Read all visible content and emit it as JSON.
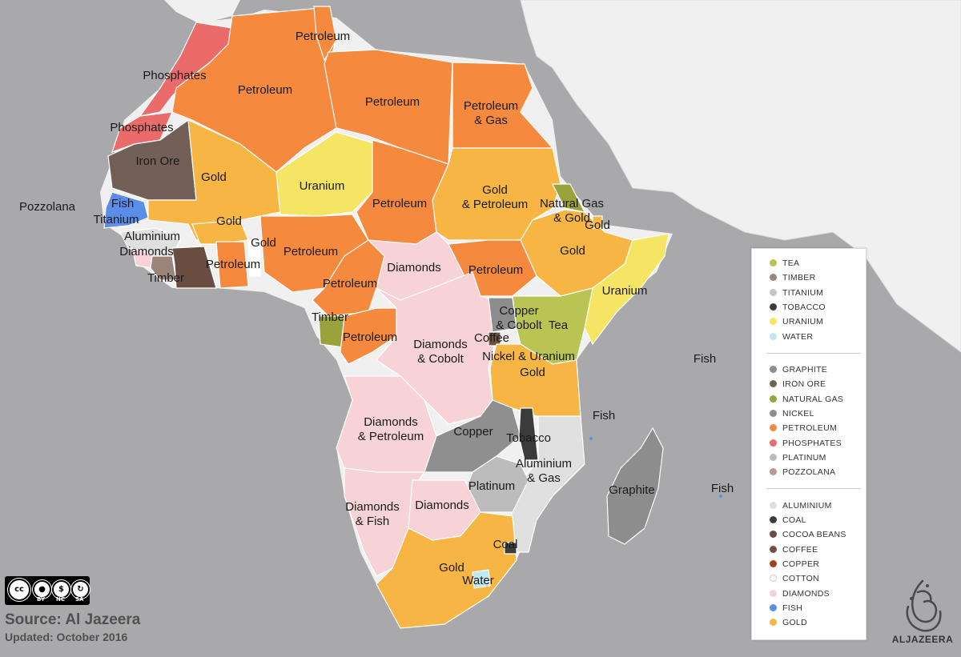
{
  "colors": {
    "sea": "#a9a9ab",
    "land_other": "#f0f0f0",
    "border": "#ffffff",
    "tea": "#b9c453",
    "timber": "#9b8479",
    "titanium": "#c6c6c6",
    "tobacco": "#3b3b3b",
    "uranium": "#f5e563",
    "water": "#bfe8f0",
    "graphite": "#8d8d8d",
    "iron_ore": "#726058",
    "natural_gas": "#9aa23c",
    "nickel": "#8f8f8f",
    "petroleum": "#f58a3e",
    "phosphates": "#eb6a6a",
    "platinum": "#bcbcbc",
    "pozzolana": "#b69b94",
    "aluminium": "#e0e0e0",
    "coal": "#3c3c3c",
    "cocoa_beans": "#6a4d40",
    "coffee": "#6e5140",
    "copper": "#a0401a",
    "cotton": "#ffffff",
    "diamonds": "#f7d2d6",
    "fish": "#5a8ee8",
    "gold": "#f7b544"
  },
  "map_labels": [
    {
      "name": "Petroleum",
      "text": "Petroleum"
    },
    {
      "name": "Phosphates",
      "text": "Phosphates"
    },
    {
      "name": "Petroleum",
      "text": "Petroleum"
    },
    {
      "name": "Petroleum",
      "text": "Petroleum"
    },
    {
      "name": "Petroleum & Gas",
      "text": "Petroleum\n& Gas"
    },
    {
      "name": "Phosphates",
      "text": "Phosphates"
    },
    {
      "name": "Iron Ore",
      "text": "Iron Ore"
    },
    {
      "name": "Gold",
      "text": "Gold"
    },
    {
      "name": "Uranium",
      "text": "Uranium"
    },
    {
      "name": "Gold & Petroleum",
      "text": "Gold\n& Petroleum"
    },
    {
      "name": "Natural Gas & Gold",
      "text": "Natural Gas\n& Gold"
    },
    {
      "name": "Gold",
      "text": "Gold"
    },
    {
      "name": "Pozzolana",
      "text": "Pozzolana"
    },
    {
      "name": "Fish",
      "text": "Fish"
    },
    {
      "name": "Titanium",
      "text": "Titanium"
    },
    {
      "name": "Petroleum",
      "text": "Petroleum"
    },
    {
      "name": "Gold",
      "text": "Gold"
    },
    {
      "name": "Aluminium",
      "text": "Aluminium"
    },
    {
      "name": "Gold",
      "text": "Gold"
    },
    {
      "name": "Diamonds",
      "text": "Diamonds"
    },
    {
      "name": "Petroleum",
      "text": "Petroleum"
    },
    {
      "name": "Gold",
      "text": "Gold"
    },
    {
      "name": "Timber",
      "text": "Timber"
    },
    {
      "name": "Petroleum",
      "text": "Petroleum"
    },
    {
      "name": "Diamonds",
      "text": "Diamonds"
    },
    {
      "name": "Petroleum",
      "text": "Petroleum"
    },
    {
      "name": "Uranium",
      "text": "Uranium"
    },
    {
      "name": "Petroleum",
      "text": "Petroleum"
    },
    {
      "name": "Timber",
      "text": "Timber"
    },
    {
      "name": "Copper & Cobolt",
      "text": "Copper\n& Cobolt"
    },
    {
      "name": "Tea",
      "text": "Tea"
    },
    {
      "name": "Petroleum",
      "text": "Petroleum"
    },
    {
      "name": "Coffee",
      "text": "Coffee"
    },
    {
      "name": "Diamonds & Cobolt",
      "text": "Diamonds\n& Cobolt"
    },
    {
      "name": "Nickel & Uranium",
      "text": "Nickel & Uranium"
    },
    {
      "name": "Fish",
      "text": "Fish"
    },
    {
      "name": "Gold",
      "text": "Gold"
    },
    {
      "name": "Fish",
      "text": "Fish"
    },
    {
      "name": "Diamonds & Petroleum",
      "text": "Diamonds\n& Petroleum"
    },
    {
      "name": "Copper",
      "text": "Copper"
    },
    {
      "name": "Tobacco",
      "text": "Tobacco"
    },
    {
      "name": "Aluminium & Gas",
      "text": "Aluminium\n& Gas"
    },
    {
      "name": "Platinum",
      "text": "Platinum"
    },
    {
      "name": "Graphite",
      "text": "Graphite"
    },
    {
      "name": "Fish",
      "text": "Fish"
    },
    {
      "name": "Diamonds",
      "text": "Diamonds"
    },
    {
      "name": "Diamonds & Fish",
      "text": "Diamonds\n& Fish"
    },
    {
      "name": "Coal",
      "text": "Coal"
    },
    {
      "name": "Gold",
      "text": "Gold"
    },
    {
      "name": "Water",
      "text": "Water"
    }
  ],
  "legend": {
    "groups": [
      [
        {
          "label": "TEA",
          "color": "#b9c453"
        },
        {
          "label": "TIMBER",
          "color": "#9b8479"
        },
        {
          "label": "TITANIUM",
          "color": "#c6c6c6"
        },
        {
          "label": "TOBACCO",
          "color": "#3b3b3b"
        },
        {
          "label": "URANIUM",
          "color": "#f5e563"
        },
        {
          "label": "WATER",
          "color": "#bfe8f0"
        }
      ],
      [
        {
          "label": "GRAPHITE",
          "color": "#8d8d8d"
        },
        {
          "label": "IRON ORE",
          "color": "#726058"
        },
        {
          "label": "NATURAL GAS",
          "color": "#9aa23c"
        },
        {
          "label": "NICKEL",
          "color": "#8f8f8f"
        },
        {
          "label": "PETROLEUM",
          "color": "#f58a3e"
        },
        {
          "label": "PHOSPHATES",
          "color": "#eb6a6a"
        },
        {
          "label": "PLATINUM",
          "color": "#bcbcbc"
        },
        {
          "label": "POZZOLANA",
          "color": "#b69b94"
        }
      ],
      [
        {
          "label": "ALUMINIUM",
          "color": "#e0e0e0"
        },
        {
          "label": "COAL",
          "color": "#3c3c3c"
        },
        {
          "label": "COCOA BEANS",
          "color": "#6a4d40"
        },
        {
          "label": "COFFEE",
          "color": "#6e5140"
        },
        {
          "label": "COPPER",
          "color": "#a0401a"
        },
        {
          "label": "COTTON",
          "color": "#ffffff"
        },
        {
          "label": "DIAMONDS",
          "color": "#f7d2d6"
        },
        {
          "label": "FISH",
          "color": "#5a8ee8"
        },
        {
          "label": "GOLD",
          "color": "#f7b544"
        }
      ]
    ]
  },
  "license": {
    "cc": "cc",
    "by": "BY",
    "nc": "NC",
    "sa": "SA"
  },
  "footer": {
    "source": "Source: Al Jazeera",
    "updated": "Updated: October 2016"
  },
  "logo": {
    "text": "ALJAZEERA"
  }
}
